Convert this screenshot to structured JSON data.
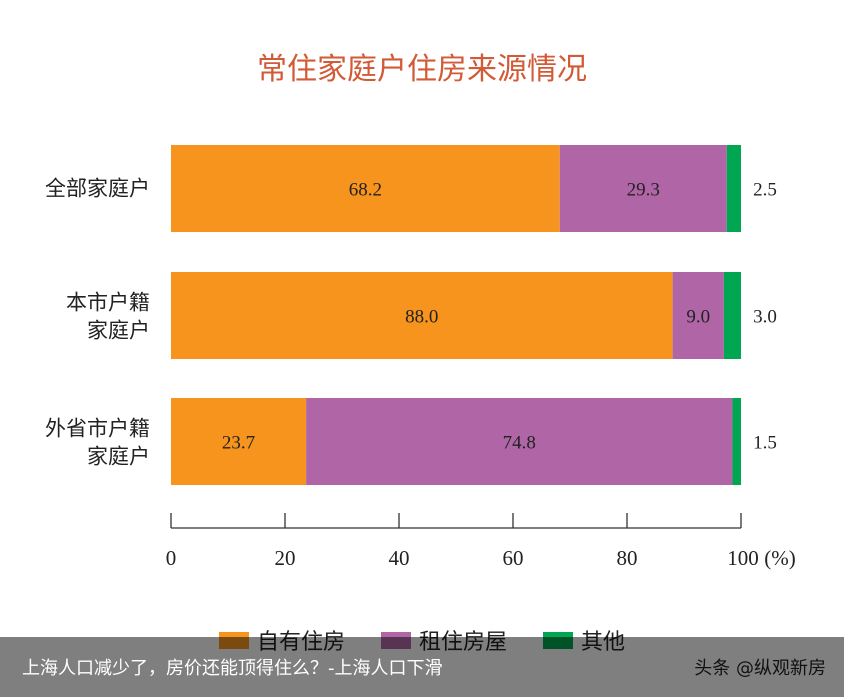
{
  "chart_data": {
    "type": "bar",
    "orientation": "horizontal",
    "stacked": true,
    "title": "常住家庭户住房来源情况",
    "categories": [
      "全部家庭户",
      "本市户籍家庭户",
      "外省市户籍家庭户"
    ],
    "category_lines": [
      [
        "全部家庭户"
      ],
      [
        "本市户籍",
        "家庭户"
      ],
      [
        "外省市户籍",
        "家庭户"
      ]
    ],
    "series": [
      {
        "name": "自有住房",
        "color": "#F7941D",
        "values": [
          68.2,
          88.0,
          23.7
        ],
        "labels": [
          "68.2",
          "88.0",
          "23.7"
        ]
      },
      {
        "name": "租住房屋",
        "color": "#B066A6",
        "values": [
          29.3,
          9.0,
          74.8
        ],
        "labels": [
          "29.3",
          "9.0",
          "74.8"
        ]
      },
      {
        "name": "其他",
        "color": "#00A651",
        "values": [
          2.5,
          3.0,
          1.5
        ],
        "labels": [
          "2.5",
          "3.0",
          "1.5"
        ]
      }
    ],
    "xlim": [
      0,
      100
    ],
    "xticks": [
      "0",
      "20",
      "40",
      "60",
      "80",
      "100"
    ],
    "xunit": "(%)",
    "grid": false,
    "legend": "bottom"
  },
  "caption": "上海人口减少了，房价还能顶得住么？-上海人口下滑",
  "source": "头条 @纵观新房"
}
